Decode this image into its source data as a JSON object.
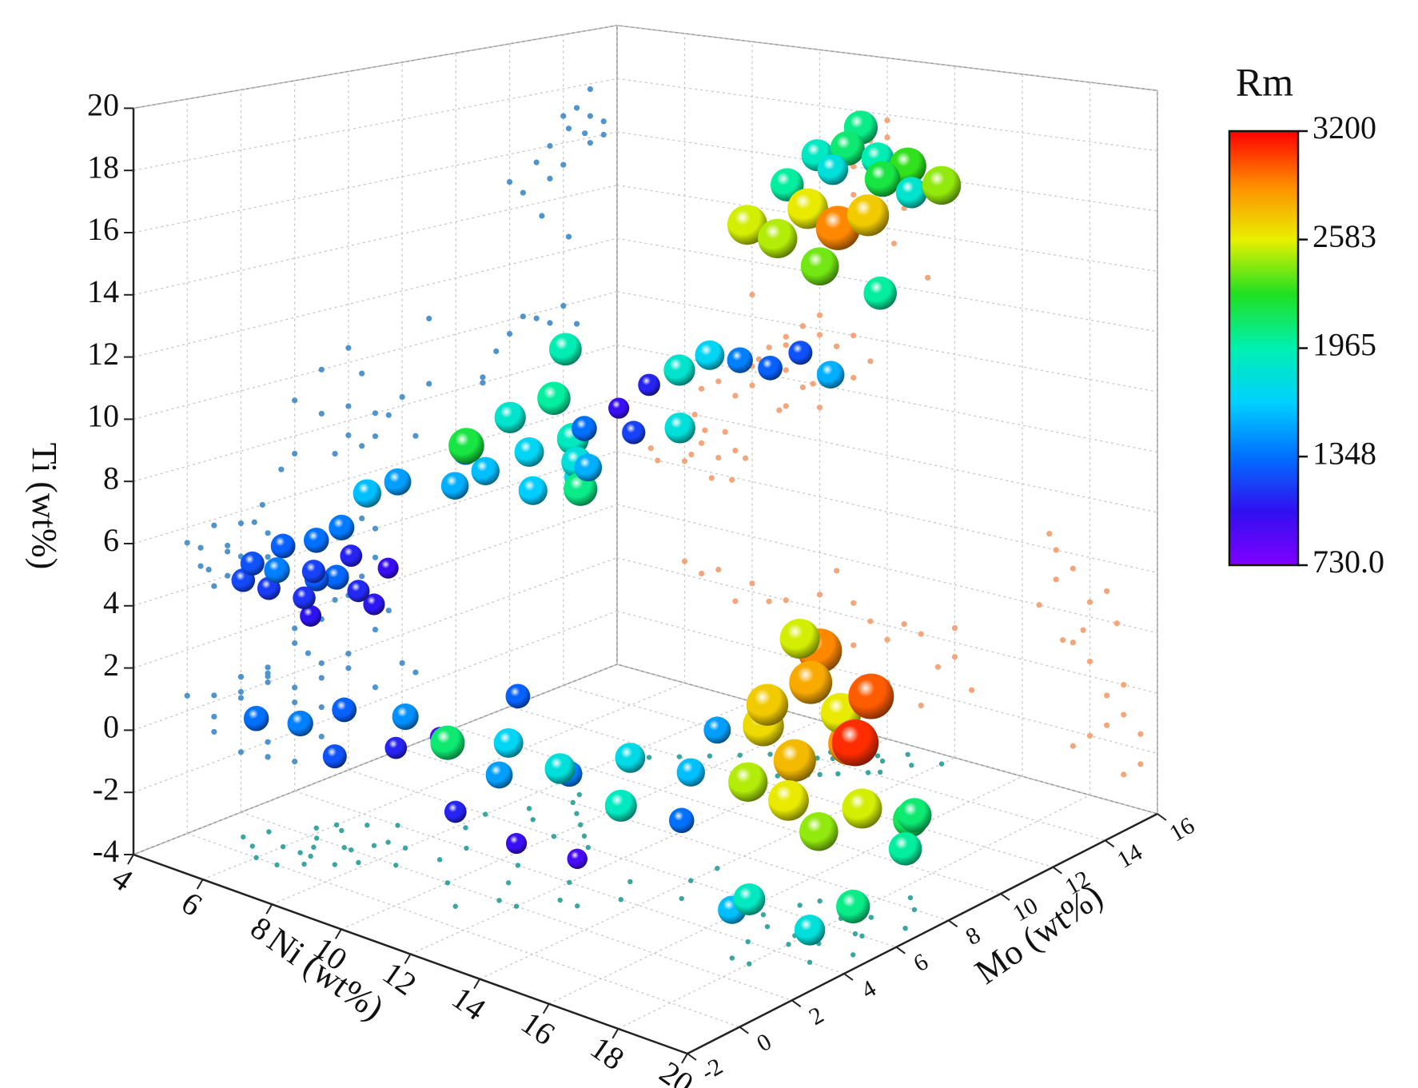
{
  "chart_data": {
    "type": "scatter3d",
    "xlabel": "Ni (wt%)",
    "ylabel": "Mo (wt%)",
    "zlabel": "Ti (wt%)",
    "clabel": "Rm",
    "xlim": [
      4,
      20
    ],
    "xticks": [
      4,
      6,
      8,
      10,
      12,
      14,
      16,
      18,
      20
    ],
    "ylim": [
      -2,
      16
    ],
    "yticks": [
      -2,
      0,
      2,
      4,
      6,
      8,
      10,
      12,
      14,
      16
    ],
    "zlim": [
      -4,
      20
    ],
    "zticks": [
      -4,
      -2,
      0,
      2,
      4,
      6,
      8,
      10,
      12,
      14,
      16,
      18,
      20
    ],
    "clim": [
      730,
      3200
    ],
    "cticks": [
      {
        "value": 730,
        "label": "730.0"
      },
      1348,
      1965,
      2583,
      3200
    ],
    "colormap": [
      "#8000ff",
      "#3010f0",
      "#0070ff",
      "#00d0ff",
      "#00f0b0",
      "#20e020",
      "#e8f000",
      "#ff8c00",
      "#ff0000"
    ],
    "grid": true,
    "projection_colors": {
      "yz": "#4f94cc",
      "xz": "#f5a57a",
      "xy": "#3aa6a0"
    },
    "series": [
      {
        "x": [
          5.5,
          6,
          6.5,
          7,
          6.2,
          5.8,
          7.2,
          6.8,
          5.2,
          7.5,
          6,
          6.6,
          7.8,
          5,
          6.3,
          7.4,
          6,
          6.5,
          7,
          7.5,
          8,
          8.5,
          9,
          8,
          8.5,
          9,
          8.2,
          9.5,
          7.5,
          9,
          10,
          8.8,
          7,
          6.5,
          9.5,
          10,
          10.5,
          9,
          11,
          8,
          10,
          9,
          9.5,
          10,
          8.5,
          10.5,
          11,
          9.8,
          8,
          11.5,
          11.5,
          12,
          12.5,
          11,
          13,
          12,
          11.5,
          12.5,
          13,
          11,
          13.5,
          12.8,
          12.2,
          13.2,
          14,
          12,
          11.8,
          11,
          11.5,
          12,
          12.5,
          11,
          13,
          13.5,
          12,
          14,
          14.5,
          13,
          10,
          10.5,
          14,
          17,
          17.5,
          18,
          17,
          16.5,
          18.5,
          17.8,
          16.8,
          18,
          17.2,
          18.8,
          17.5,
          18.5,
          19,
          19,
          19.5,
          18,
          19.5,
          18.5,
          19,
          17.5
        ],
        "y": [
          0.5,
          1,
          1.5,
          0.5,
          2,
          2.5,
          2,
          1,
          1.5,
          3,
          3,
          0,
          1.5,
          0.8,
          2.8,
          2.6,
          0,
          1,
          2,
          1,
          3,
          2,
          3,
          6,
          7,
          6.5,
          5,
          7.5,
          5.5,
          8,
          7,
          8.5,
          4,
          3.5,
          5,
          6,
          6.5,
          4,
          6,
          9,
          9,
          12,
          12.5,
          13,
          11.5,
          13.5,
          14,
          11,
          11,
          14.5,
          14,
          14.5,
          15,
          13.5,
          15.5,
          13,
          12.5,
          13.5,
          14,
          12,
          15,
          14.8,
          13.2,
          14.2,
          15.5,
          15,
          14.2,
          3,
          2,
          4,
          3,
          1,
          5,
          4,
          2,
          6,
          5,
          3,
          2,
          4,
          7,
          5,
          6,
          6.5,
          7,
          5.5,
          7,
          5,
          6.5,
          4.5,
          4,
          6,
          7.5,
          5,
          6,
          8,
          7,
          3,
          5,
          8.5,
          4,
          3
        ],
        "z": [
          5.2,
          5.8,
          5,
          4.6,
          4.5,
          5.5,
          5.6,
          3.8,
          4,
          5,
          4.2,
          5.5,
          4.8,
          4.4,
          6,
          3.9,
          0.5,
          0.2,
          0.5,
          -0.5,
          0.3,
          -0.2,
          0,
          7.5,
          8,
          7,
          8.5,
          7.8,
          7,
          8.3,
          7.2,
          6.8,
          7.4,
          7,
          10,
          10.5,
          9.5,
          9.2,
          8.5,
          10.8,
          8.5,
          9.5,
          10,
          9.8,
          9,
          9.5,
          10,
          8,
          8.2,
          9.2,
          17,
          17.2,
          16.8,
          16,
          16.5,
          15.5,
          14.5,
          14.8,
          15.2,
          15,
          15.8,
          16.2,
          13.5,
          12.5,
          16,
          17.8,
          16.5,
          0.5,
          0,
          -0.5,
          0.2,
          -1,
          0,
          -1,
          -2,
          -0.5,
          -1.5,
          -2.5,
          0.5,
          1.5,
          0.5,
          3,
          3.5,
          2.5,
          4,
          2,
          3,
          1.5,
          4.5,
          0.5,
          1,
          2,
          1,
          -0.5,
          0,
          -1,
          -1.5,
          -2,
          -2.5,
          -1.5,
          -3,
          -2.5
        ],
        "c": [
          1250,
          1300,
          1200,
          1150,
          1280,
          1350,
          1100,
          1050,
          1180,
          1000,
          1320,
          1400,
          1120,
          1220,
          1380,
          1060,
          1350,
          1400,
          1300,
          1250,
          1450,
          1100,
          900,
          1600,
          1700,
          1650,
          1500,
          1800,
          1550,
          1900,
          2050,
          1750,
          1500,
          1600,
          1850,
          2000,
          1350,
          2200,
          1550,
          1950,
          1200,
          1850,
          1700,
          1400,
          1100,
          1300,
          1250,
          1800,
          1000,
          1550,
          1900,
          2100,
          1950,
          2000,
          2300,
          2600,
          2500,
          2900,
          2700,
          2550,
          1850,
          2200,
          2400,
          2000,
          2450,
          2050,
          1800,
          1700,
          1500,
          1400,
          1800,
          1100,
          1750,
          1900,
          1000,
          1600,
          1350,
          950,
          2100,
          1300,
          1500,
          2700,
          2800,
          2600,
          2900,
          2650,
          3000,
          2750,
          2550,
          2600,
          2500,
          3100,
          2850,
          2450,
          2550,
          2100,
          2000,
          1900,
          2050,
          2150,
          1800,
          1600
        ]
      }
    ]
  }
}
